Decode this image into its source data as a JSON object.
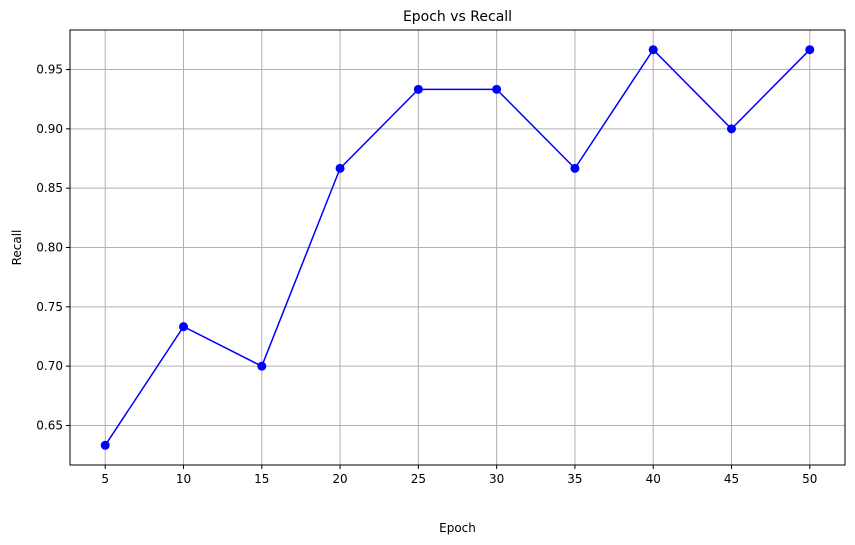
{
  "chart_data": {
    "type": "line",
    "title": "Epoch vs Recall",
    "xlabel": "Epoch",
    "ylabel": "Recall",
    "x": [
      5,
      10,
      15,
      20,
      25,
      30,
      35,
      40,
      45,
      50
    ],
    "series": [
      {
        "values": [
          0.6333,
          0.7333,
          0.7,
          0.8667,
          0.9333,
          0.9333,
          0.8667,
          0.9667,
          0.9,
          0.9667
        ],
        "color": "#0000ff",
        "marker": "circle"
      }
    ],
    "xticks": [
      5,
      10,
      15,
      20,
      25,
      30,
      35,
      40,
      45,
      50
    ],
    "yticks": [
      "0.65",
      "0.70",
      "0.75",
      "0.80",
      "0.85",
      "0.90",
      "0.95"
    ],
    "xlim": [
      2.75,
      52.25
    ],
    "ylim": [
      0.6167,
      0.9833
    ],
    "grid": true,
    "grid_color": "#b0b0b0"
  }
}
